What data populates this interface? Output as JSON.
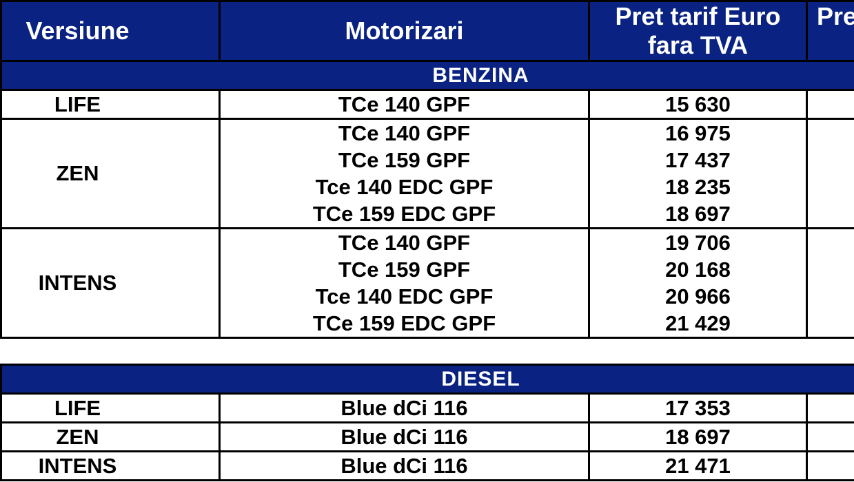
{
  "colors": {
    "band_navy": "#0a2382",
    "border_black": "#000000",
    "header_text": "#ffffff",
    "body_text": "#000000"
  },
  "table": {
    "headers": {
      "versiune": "Versiune",
      "motorizari": "Motorizari",
      "pret_fara_tva_line1": "Pret tarif Euro",
      "pret_fara_tva_line2": "fara TVA",
      "pret_cutoff_visible": "Pre"
    },
    "sections": [
      {
        "title": "BENZINA",
        "groups": [
          {
            "version": "LIFE",
            "rows": [
              {
                "engine": "TCe 140 GPF",
                "price": "15 630"
              }
            ]
          },
          {
            "version": "ZEN",
            "rows": [
              {
                "engine": "TCe 140 GPF",
                "price": "16 975"
              },
              {
                "engine": "TCe 159 GPF",
                "price": "17 437"
              },
              {
                "engine": "Tce 140 EDC GPF",
                "price": "18 235"
              },
              {
                "engine": "TCe 159 EDC GPF",
                "price": "18 697"
              }
            ]
          },
          {
            "version": "INTENS",
            "rows": [
              {
                "engine": "TCe 140 GPF",
                "price": "19 706"
              },
              {
                "engine": "TCe 159 GPF",
                "price": "20 168"
              },
              {
                "engine": "Tce 140 EDC GPF",
                "price": "20 966"
              },
              {
                "engine": "TCe 159 EDC GPF",
                "price": "21 429"
              }
            ]
          }
        ]
      },
      {
        "title": "DIESEL",
        "groups": [
          {
            "version": "LIFE",
            "rows": [
              {
                "engine": "Blue dCi 116",
                "price": "17 353"
              }
            ]
          },
          {
            "version": "ZEN",
            "rows": [
              {
                "engine": "Blue dCi 116",
                "price": "18 697"
              }
            ]
          },
          {
            "version": "INTENS",
            "rows": [
              {
                "engine": "Blue dCi 116",
                "price": "21 471"
              }
            ]
          }
        ]
      }
    ]
  }
}
